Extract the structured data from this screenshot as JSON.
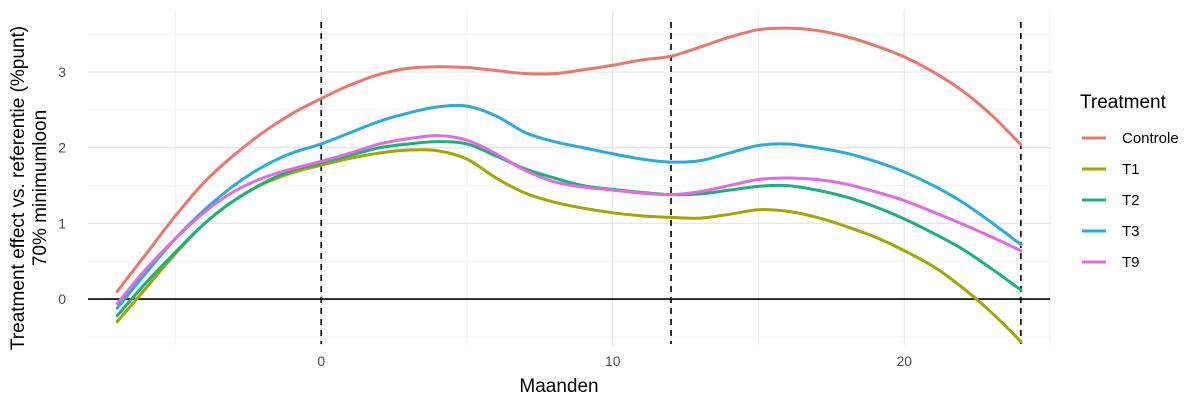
{
  "chart_data": {
    "type": "line",
    "xlabel": "Maanden",
    "ylabel_lines": [
      "Treatment effect vs. referentie (%punt)",
      "70% minimumloon"
    ],
    "xlim": [
      -8,
      25
    ],
    "ylim": [
      -0.62,
      3.82
    ],
    "xticks": [
      0,
      10,
      20
    ],
    "yticks": [
      0,
      1,
      2,
      3
    ],
    "x_minor_grid": [
      -5,
      5,
      15,
      25
    ],
    "y_minor_grid": [
      -0.5,
      0.5,
      1.5,
      2.5,
      3.5
    ],
    "grid": true,
    "hline": 0,
    "vlines": [
      0,
      12,
      24
    ],
    "legend": {
      "title": "Treatment",
      "position": "right"
    },
    "series": [
      {
        "name": "Controle",
        "color": "#E7786F",
        "points": [
          [
            -7,
            0.1
          ],
          [
            -6,
            0.6
          ],
          [
            -5,
            1.1
          ],
          [
            -4,
            1.55
          ],
          [
            -3,
            1.9
          ],
          [
            -2,
            2.2
          ],
          [
            -1,
            2.45
          ],
          [
            0,
            2.65
          ],
          [
            1,
            2.83
          ],
          [
            2,
            2.97
          ],
          [
            3,
            3.05
          ],
          [
            4,
            3.07
          ],
          [
            5,
            3.06
          ],
          [
            6,
            3.02
          ],
          [
            7,
            2.98
          ],
          [
            8,
            2.98
          ],
          [
            9,
            3.03
          ],
          [
            10,
            3.09
          ],
          [
            11,
            3.16
          ],
          [
            12,
            3.21
          ],
          [
            13,
            3.33
          ],
          [
            14,
            3.46
          ],
          [
            15,
            3.56
          ],
          [
            16,
            3.58
          ],
          [
            17,
            3.55
          ],
          [
            18,
            3.47
          ],
          [
            19,
            3.35
          ],
          [
            20,
            3.2
          ],
          [
            21,
            3.0
          ],
          [
            22,
            2.75
          ],
          [
            23,
            2.43
          ],
          [
            24,
            2.04
          ]
        ]
      },
      {
        "name": "T1",
        "color": "#A3A500",
        "points": [
          [
            -7,
            -0.3
          ],
          [
            -6,
            0.15
          ],
          [
            -5,
            0.6
          ],
          [
            -4,
            1.0
          ],
          [
            -3,
            1.3
          ],
          [
            -2,
            1.52
          ],
          [
            -1,
            1.67
          ],
          [
            0,
            1.77
          ],
          [
            1,
            1.86
          ],
          [
            2,
            1.93
          ],
          [
            3,
            1.97
          ],
          [
            4,
            1.96
          ],
          [
            5,
            1.85
          ],
          [
            6,
            1.6
          ],
          [
            7,
            1.4
          ],
          [
            8,
            1.28
          ],
          [
            9,
            1.2
          ],
          [
            10,
            1.14
          ],
          [
            11,
            1.1
          ],
          [
            12,
            1.08
          ],
          [
            13,
            1.07
          ],
          [
            14,
            1.12
          ],
          [
            15,
            1.18
          ],
          [
            16,
            1.16
          ],
          [
            17,
            1.08
          ],
          [
            18,
            0.96
          ],
          [
            19,
            0.82
          ],
          [
            20,
            0.64
          ],
          [
            21,
            0.43
          ],
          [
            22,
            0.15
          ],
          [
            23,
            -0.18
          ],
          [
            24,
            -0.56
          ]
        ]
      },
      {
        "name": "T2",
        "color": "#1DAF7E",
        "points": [
          [
            -7,
            -0.22
          ],
          [
            -6,
            0.22
          ],
          [
            -5,
            0.62
          ],
          [
            -4,
            1.0
          ],
          [
            -3,
            1.3
          ],
          [
            -2,
            1.53
          ],
          [
            -1,
            1.7
          ],
          [
            0,
            1.8
          ],
          [
            1,
            1.9
          ],
          [
            2,
            2.0
          ],
          [
            3,
            2.05
          ],
          [
            4,
            2.08
          ],
          [
            5,
            2.05
          ],
          [
            6,
            1.89
          ],
          [
            7,
            1.72
          ],
          [
            8,
            1.6
          ],
          [
            9,
            1.5
          ],
          [
            10,
            1.45
          ],
          [
            11,
            1.41
          ],
          [
            12,
            1.38
          ],
          [
            13,
            1.39
          ],
          [
            14,
            1.44
          ],
          [
            15,
            1.49
          ],
          [
            16,
            1.5
          ],
          [
            17,
            1.44
          ],
          [
            18,
            1.35
          ],
          [
            19,
            1.22
          ],
          [
            20,
            1.06
          ],
          [
            21,
            0.87
          ],
          [
            22,
            0.66
          ],
          [
            23,
            0.4
          ],
          [
            24,
            0.12
          ]
        ]
      },
      {
        "name": "T3",
        "color": "#2DAAD7",
        "points": [
          [
            -7,
            -0.12
          ],
          [
            -6,
            0.35
          ],
          [
            -5,
            0.8
          ],
          [
            -4,
            1.18
          ],
          [
            -3,
            1.5
          ],
          [
            -2,
            1.75
          ],
          [
            -1,
            1.93
          ],
          [
            0,
            2.05
          ],
          [
            1,
            2.2
          ],
          [
            2,
            2.35
          ],
          [
            3,
            2.46
          ],
          [
            4,
            2.54
          ],
          [
            5,
            2.55
          ],
          [
            6,
            2.42
          ],
          [
            7,
            2.2
          ],
          [
            8,
            2.08
          ],
          [
            9,
            2.0
          ],
          [
            10,
            1.92
          ],
          [
            11,
            1.85
          ],
          [
            12,
            1.81
          ],
          [
            13,
            1.83
          ],
          [
            14,
            1.93
          ],
          [
            15,
            2.03
          ],
          [
            16,
            2.05
          ],
          [
            17,
            2.0
          ],
          [
            18,
            1.93
          ],
          [
            19,
            1.82
          ],
          [
            20,
            1.68
          ],
          [
            21,
            1.5
          ],
          [
            22,
            1.28
          ],
          [
            23,
            1.01
          ],
          [
            24,
            0.72
          ]
        ]
      },
      {
        "name": "T9",
        "color": "#E16BE0",
        "points": [
          [
            -7,
            -0.06
          ],
          [
            -6,
            0.4
          ],
          [
            -5,
            0.8
          ],
          [
            -4,
            1.15
          ],
          [
            -3,
            1.42
          ],
          [
            -2,
            1.6
          ],
          [
            -1,
            1.72
          ],
          [
            0,
            1.82
          ],
          [
            1,
            1.93
          ],
          [
            2,
            2.05
          ],
          [
            3,
            2.12
          ],
          [
            4,
            2.16
          ],
          [
            5,
            2.1
          ],
          [
            6,
            1.92
          ],
          [
            7,
            1.7
          ],
          [
            8,
            1.55
          ],
          [
            9,
            1.48
          ],
          [
            10,
            1.44
          ],
          [
            11,
            1.4
          ],
          [
            12,
            1.38
          ],
          [
            13,
            1.42
          ],
          [
            14,
            1.5
          ],
          [
            15,
            1.58
          ],
          [
            16,
            1.6
          ],
          [
            17,
            1.58
          ],
          [
            18,
            1.52
          ],
          [
            19,
            1.42
          ],
          [
            20,
            1.3
          ],
          [
            21,
            1.15
          ],
          [
            22,
            0.99
          ],
          [
            23,
            0.82
          ],
          [
            24,
            0.64
          ]
        ]
      }
    ]
  }
}
